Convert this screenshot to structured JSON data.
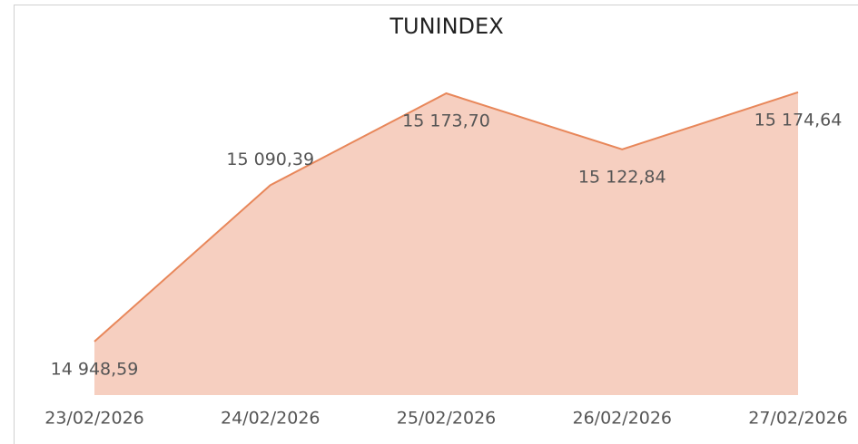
{
  "chart_data": {
    "type": "area",
    "title": "TUNINDEX",
    "categories": [
      "23/02/2026",
      "24/02/2026",
      "25/02/2026",
      "26/02/2026",
      "27/02/2026"
    ],
    "series": [
      {
        "name": "TUNINDEX",
        "color": "#e8875a",
        "fill": "#f6cfc0",
        "values": [
          14948.59,
          15090.39,
          15173.7,
          15122.84,
          15174.64
        ],
        "value_labels": [
          "14 948,59",
          "15 090,39",
          "15 173,70",
          "15 122,84",
          "15 174,64"
        ]
      }
    ],
    "ylim": [
      14900,
      15200
    ]
  }
}
